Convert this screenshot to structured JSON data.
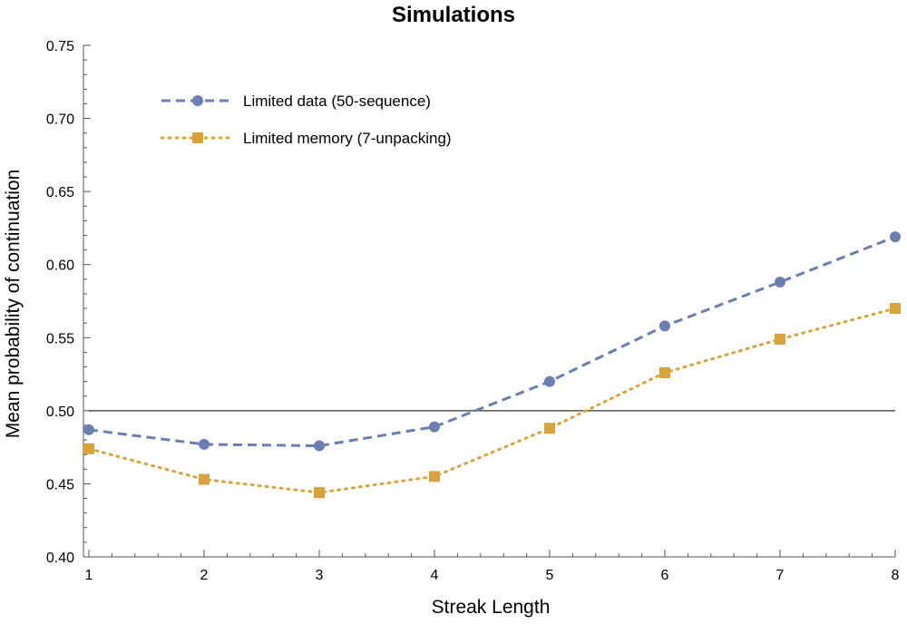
{
  "chart_data": {
    "type": "line",
    "title": "Simulations",
    "xlabel": "Streak Length",
    "ylabel": "Mean probability of continuation",
    "x": [
      1,
      2,
      3,
      4,
      5,
      6,
      7,
      8
    ],
    "xlim": [
      1,
      8
    ],
    "ylim": [
      0.4,
      0.75
    ],
    "x_ticks": [
      "1",
      "2",
      "3",
      "4",
      "5",
      "6",
      "7",
      "8"
    ],
    "y_ticks": [
      "0.40",
      "0.45",
      "0.50",
      "0.55",
      "0.60",
      "0.65",
      "0.70",
      "0.75"
    ],
    "y_tick_values": [
      0.4,
      0.45,
      0.5,
      0.55,
      0.6,
      0.65,
      0.7,
      0.75
    ],
    "reference_line": 0.5,
    "legend_position": "top-left",
    "grid": false,
    "series": [
      {
        "name": "Limited data (50-sequence)",
        "values": [
          0.487,
          0.477,
          0.476,
          0.489,
          0.52,
          0.558,
          0.588,
          0.619
        ],
        "color": "#6b7fb3",
        "marker": "circle",
        "line_style": "dashed"
      },
      {
        "name": "Limited memory (7-unpacking)",
        "values": [
          0.474,
          0.453,
          0.444,
          0.455,
          0.488,
          0.526,
          0.549,
          0.57
        ],
        "color": "#d9a23a",
        "marker": "square",
        "line_style": "dotted"
      }
    ]
  }
}
